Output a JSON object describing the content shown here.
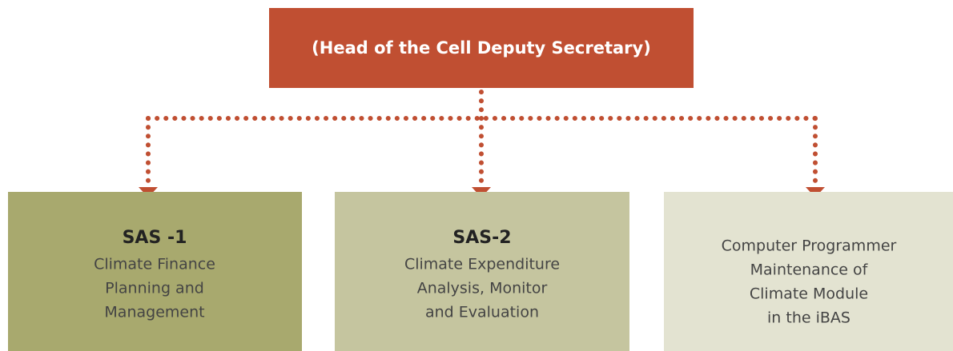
{
  "header": {
    "title": "(Head of the Cell Deputy Secretary)"
  },
  "nodes": [
    {
      "title": "SAS -1",
      "lines": [
        "Climate Finance",
        "Planning and",
        "Management"
      ]
    },
    {
      "title": "SAS-2",
      "lines": [
        "Climate Expenditure",
        "Analysis, Monitor",
        "and Evaluation"
      ]
    },
    {
      "lines": [
        "Computer Programmer",
        "Maintenance of",
        "Climate Module",
        "in the iBAS"
      ]
    }
  ]
}
